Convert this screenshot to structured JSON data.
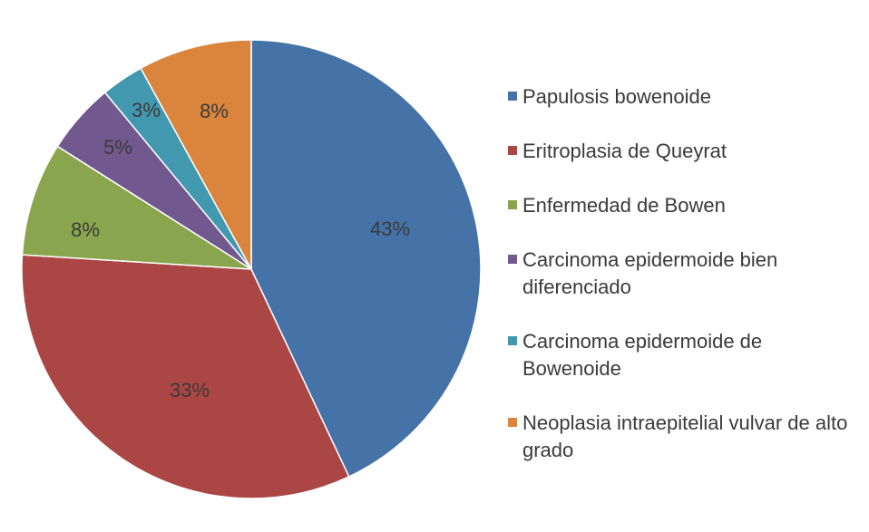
{
  "chart_data": {
    "type": "pie",
    "slices": [
      {
        "label": "Papulosis bowenoide",
        "value": 43,
        "text": "43%",
        "color": "#4572A7"
      },
      {
        "label": "Eritroplasia de Queyrat",
        "value": 33,
        "text": "33%",
        "color": "#AA4643"
      },
      {
        "label": "Enfermedad de Bowen",
        "value": 8,
        "text": "8%",
        "color": "#89A54E"
      },
      {
        "label": "Carcinoma epidermoide bien diferenciado",
        "value": 5,
        "text": "5%",
        "color": "#71588F"
      },
      {
        "label": "Carcinoma epidermoide de Bowenoide",
        "value": 3,
        "text": "3%",
        "color": "#4198AF"
      },
      {
        "label": "Neoplasia intraepitelial vulvar de alto grado",
        "value": 8,
        "text": "8%",
        "color": "#DB843D"
      }
    ],
    "legend_position": "right"
  }
}
